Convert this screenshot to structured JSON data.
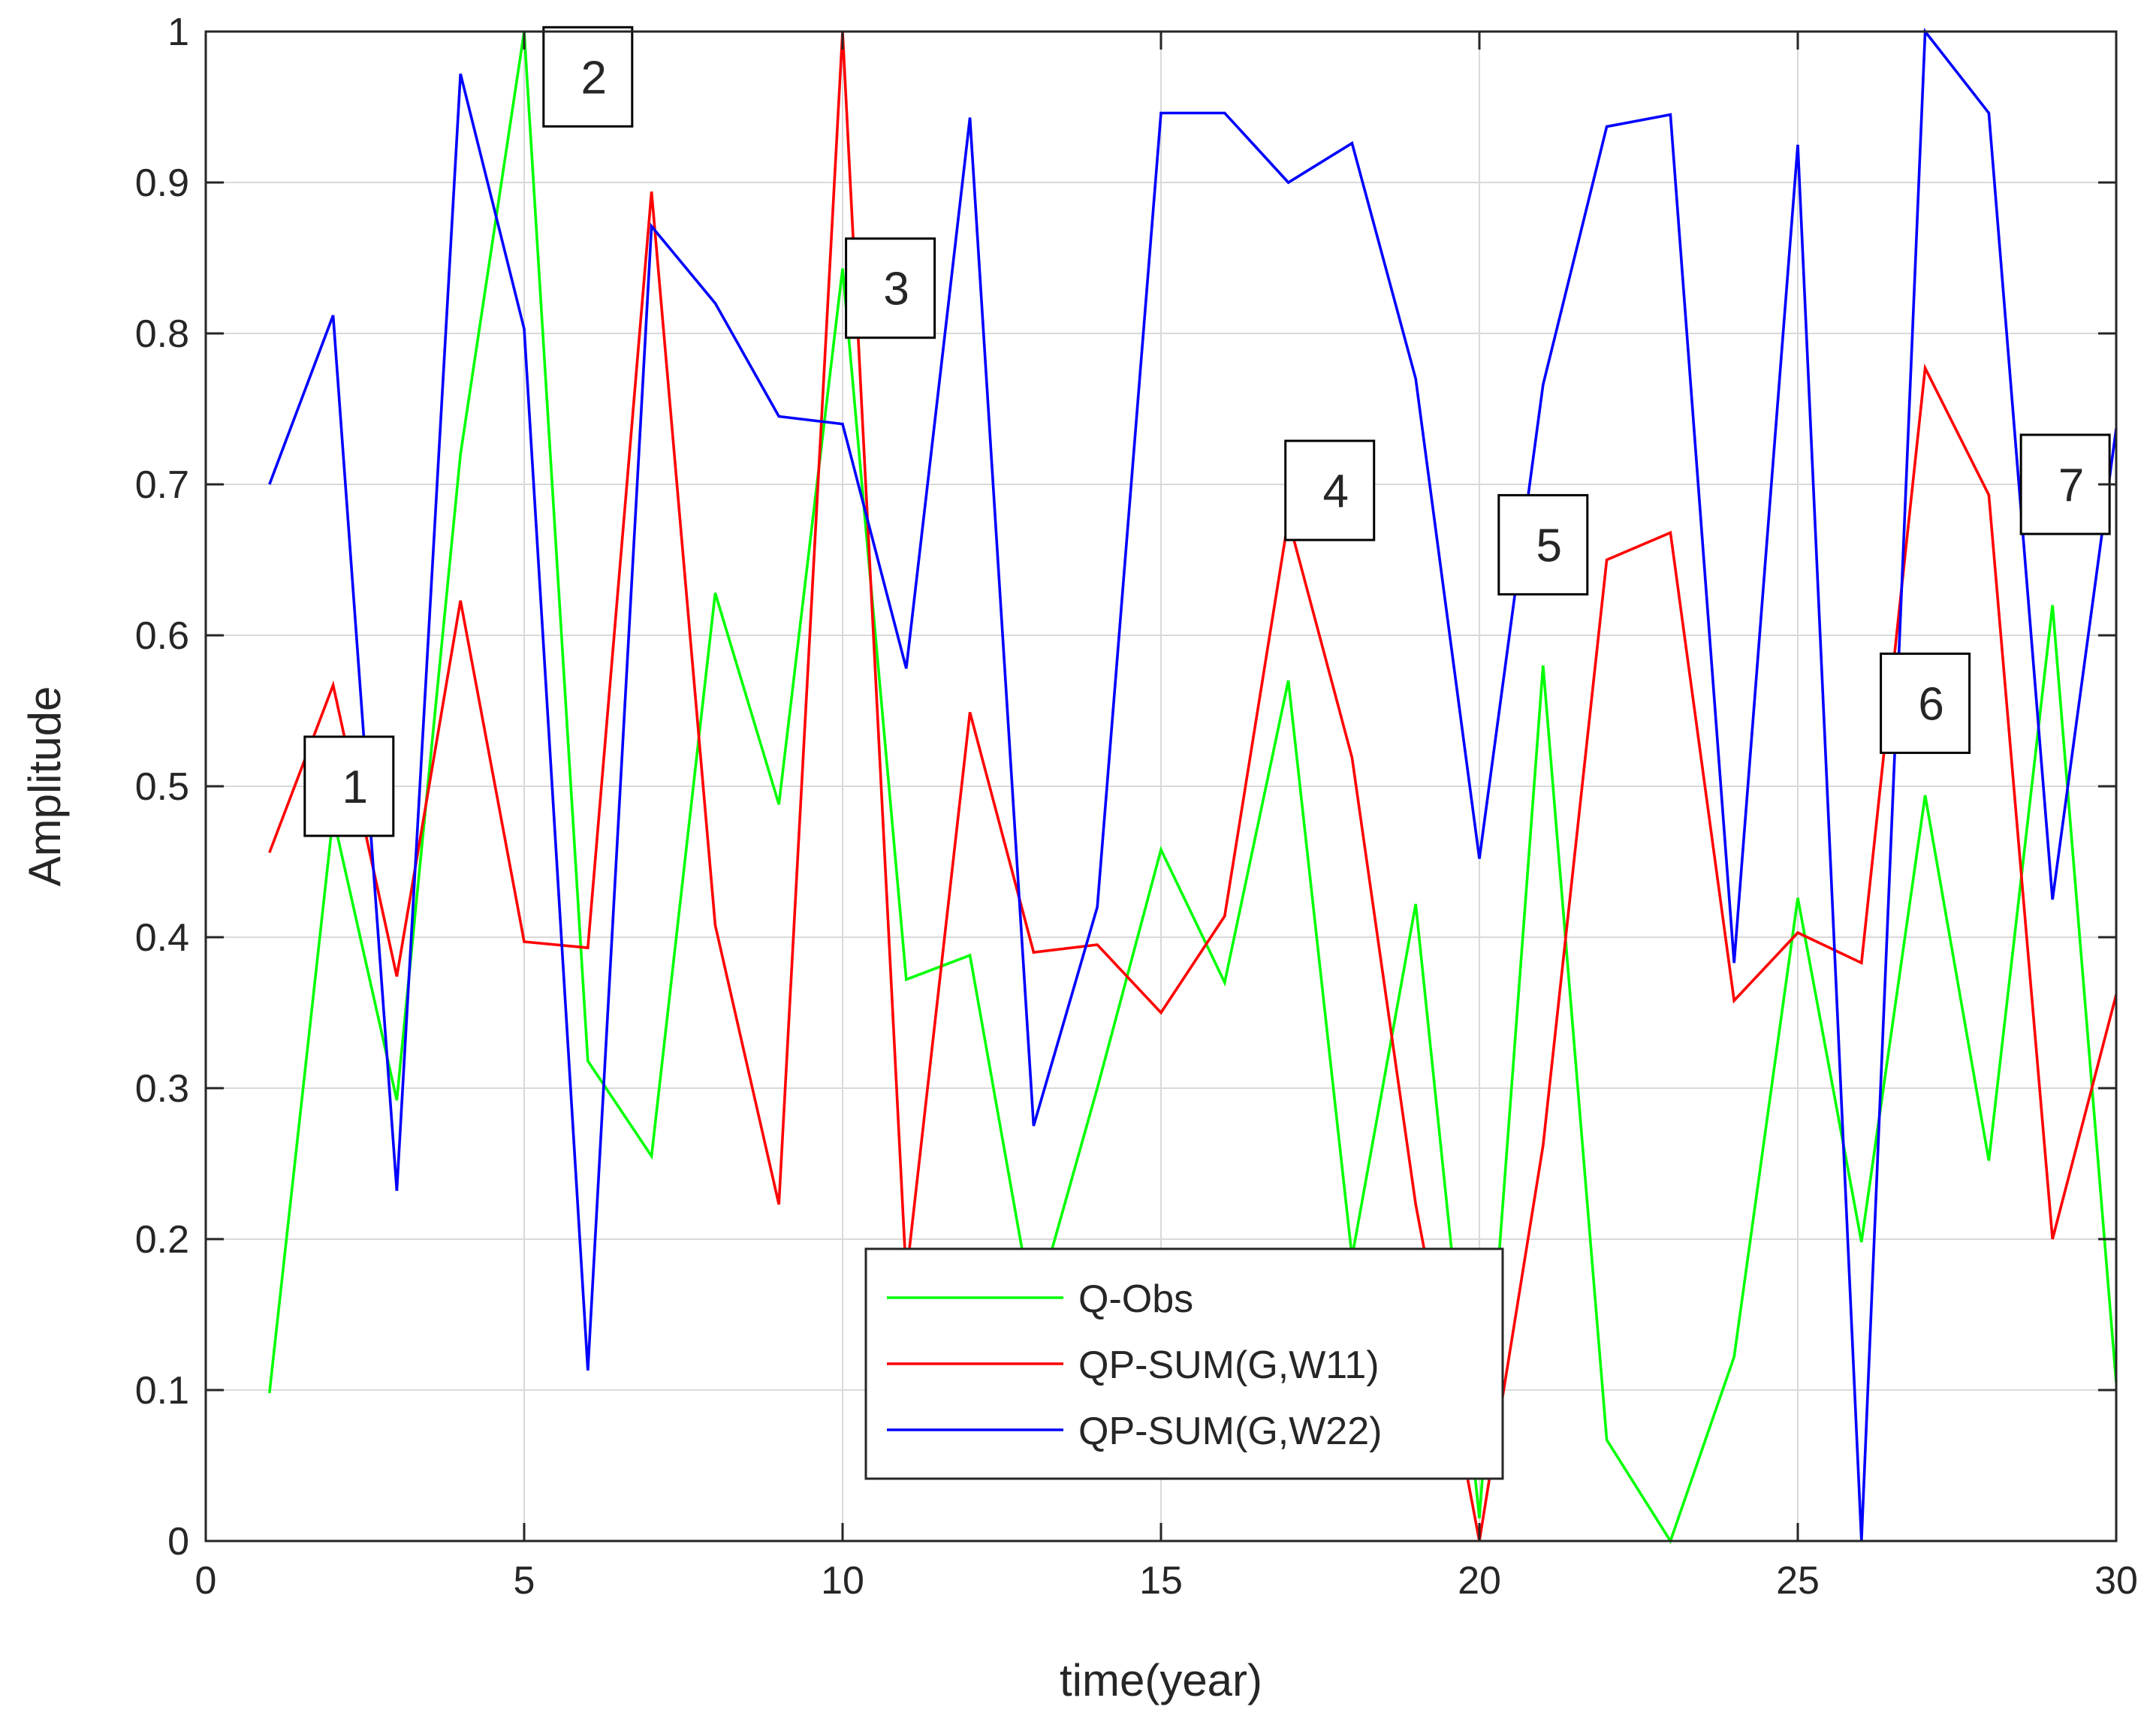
{
  "chart_data": {
    "type": "line",
    "title": "",
    "xlabel": "time(year)",
    "ylabel": "Amplitude",
    "xlim": [
      0,
      30
    ],
    "ylim": [
      0,
      1
    ],
    "grid": true,
    "legend_position": "bottom-center",
    "xticks": [
      0,
      5,
      10,
      15,
      20,
      25,
      30
    ],
    "xtick_labels": [
      "0",
      "5",
      "10",
      "15",
      "20",
      "25",
      "30"
    ],
    "yticks": [
      0,
      0.1,
      0.2,
      0.3,
      0.4,
      0.5,
      0.6,
      0.7,
      0.8,
      0.9,
      1
    ],
    "ytick_labels": [
      "0",
      "0.1",
      "0.2",
      "0.3",
      "0.4",
      "0.5",
      "0.6",
      "0.7",
      "0.8",
      "0.9",
      "1"
    ],
    "x": [
      1,
      2,
      3,
      4,
      5,
      6,
      7,
      8,
      9,
      10,
      11,
      12,
      13,
      14,
      15,
      16,
      17,
      18,
      19,
      20,
      21,
      22,
      23,
      24,
      25,
      26,
      27,
      28,
      29,
      30
    ],
    "series": [
      {
        "name": "Q-Obs",
        "color": "#00ff00",
        "values": [
          0.098,
          0.48,
          0.292,
          0.72,
          1.0,
          0.318,
          0.255,
          0.628,
          0.488,
          0.843,
          0.372,
          0.388,
          0.15,
          0.3,
          0.458,
          0.37,
          0.57,
          0.188,
          0.422,
          0.015,
          0.58,
          0.067,
          0.0,
          0.122,
          0.426,
          0.198,
          0.494,
          0.252,
          0.62,
          0.105
        ]
      },
      {
        "name": "QP-SUM(G,W11)",
        "color": "#ff0000",
        "values": [
          0.456,
          0.567,
          0.374,
          0.623,
          0.397,
          0.393,
          0.894,
          0.408,
          0.223,
          1.0,
          0.175,
          0.549,
          0.39,
          0.395,
          0.35,
          0.414,
          0.677,
          0.519,
          0.223,
          0.0,
          0.262,
          0.65,
          0.668,
          0.358,
          0.403,
          0.383,
          0.777,
          0.693,
          0.2,
          0.362
        ]
      },
      {
        "name": "QP-SUM(G,W22)",
        "color": "#0000ff",
        "values": [
          0.7,
          0.812,
          0.232,
          0.972,
          0.803,
          0.113,
          0.871,
          0.82,
          0.745,
          0.74,
          0.578,
          0.943,
          0.275,
          0.42,
          0.946,
          0.946,
          0.9,
          0.926,
          0.77,
          0.452,
          0.766,
          0.937,
          0.945,
          0.383,
          0.925,
          0.0,
          1.0,
          0.946,
          0.425,
          0.737
        ]
      }
    ],
    "annotations": [
      {
        "text": "1",
        "x": 2.25,
        "y": 0.5
      },
      {
        "text": "2",
        "x": 6.0,
        "y": 0.97
      },
      {
        "text": "3",
        "x": 10.75,
        "y": 0.83
      },
      {
        "text": "4",
        "x": 17.65,
        "y": 0.696
      },
      {
        "text": "5",
        "x": 21.0,
        "y": 0.66
      },
      {
        "text": "6",
        "x": 27.0,
        "y": 0.555
      },
      {
        "text": "7",
        "x": 29.2,
        "y": 0.7
      }
    ]
  }
}
